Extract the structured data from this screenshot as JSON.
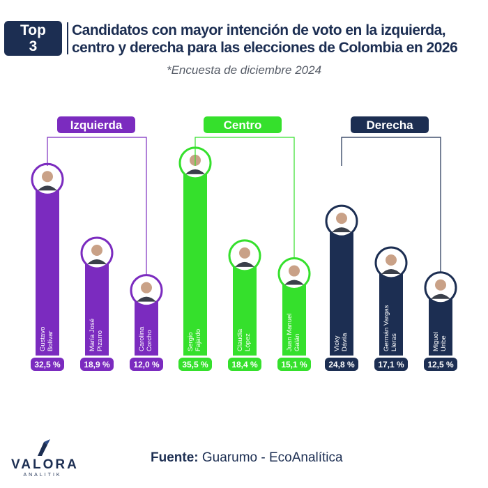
{
  "badge": {
    "line1": "Top",
    "line2": "3"
  },
  "title_line1": "Candidatos con mayor intención de voto en la izquierda,",
  "title_line2": "centro y derecha para las elecciones de Colombia en 2026",
  "subtitle": "*Encuesta de diciembre 2024",
  "footer": {
    "source_label": "Fuente:",
    "source_value": "Guarumo - EcoAnalítica"
  },
  "logo": {
    "word": "VALORA",
    "sub": "ANALITIK"
  },
  "colors": {
    "izquierda": "#7b2bbf",
    "centro": "#35e02c",
    "derecha": "#1c2e52",
    "text": "#1c2e52"
  },
  "chart_data": {
    "type": "bar",
    "title": "Candidatos con mayor intención de voto en la izquierda, centro y derecha para las elecciones de Colombia en 2026",
    "unit": "%",
    "groups": [
      {
        "name": "Izquierda",
        "color": "#7b2bbf",
        "candidates": [
          {
            "name": "Gustavo Bolívar",
            "value": 32.5,
            "label": "32,5 %"
          },
          {
            "name": "María José Pizarro",
            "value": 18.9,
            "label": "18,9 %"
          },
          {
            "name": "Carolina Corcho",
            "value": 12.0,
            "label": "12,0 %"
          }
        ]
      },
      {
        "name": "Centro",
        "color": "#35e02c",
        "candidates": [
          {
            "name": "Sergio Fajardo",
            "value": 35.5,
            "label": "35,5 %"
          },
          {
            "name": "Claudia López",
            "value": 18.4,
            "label": "18,4 %"
          },
          {
            "name": "Juan Manuel Galán",
            "value": 15.1,
            "label": "15,1 %"
          }
        ]
      },
      {
        "name": "Derecha",
        "color": "#1c2e52",
        "candidates": [
          {
            "name": "Vicky Dávila",
            "value": 24.8,
            "label": "24,8 %"
          },
          {
            "name": "Germán Vargas Lleras",
            "value": 17.1,
            "label": "17,1 %"
          },
          {
            "name": "Miguel Uribe",
            "value": 12.5,
            "label": "12,5 %"
          }
        ]
      }
    ]
  }
}
